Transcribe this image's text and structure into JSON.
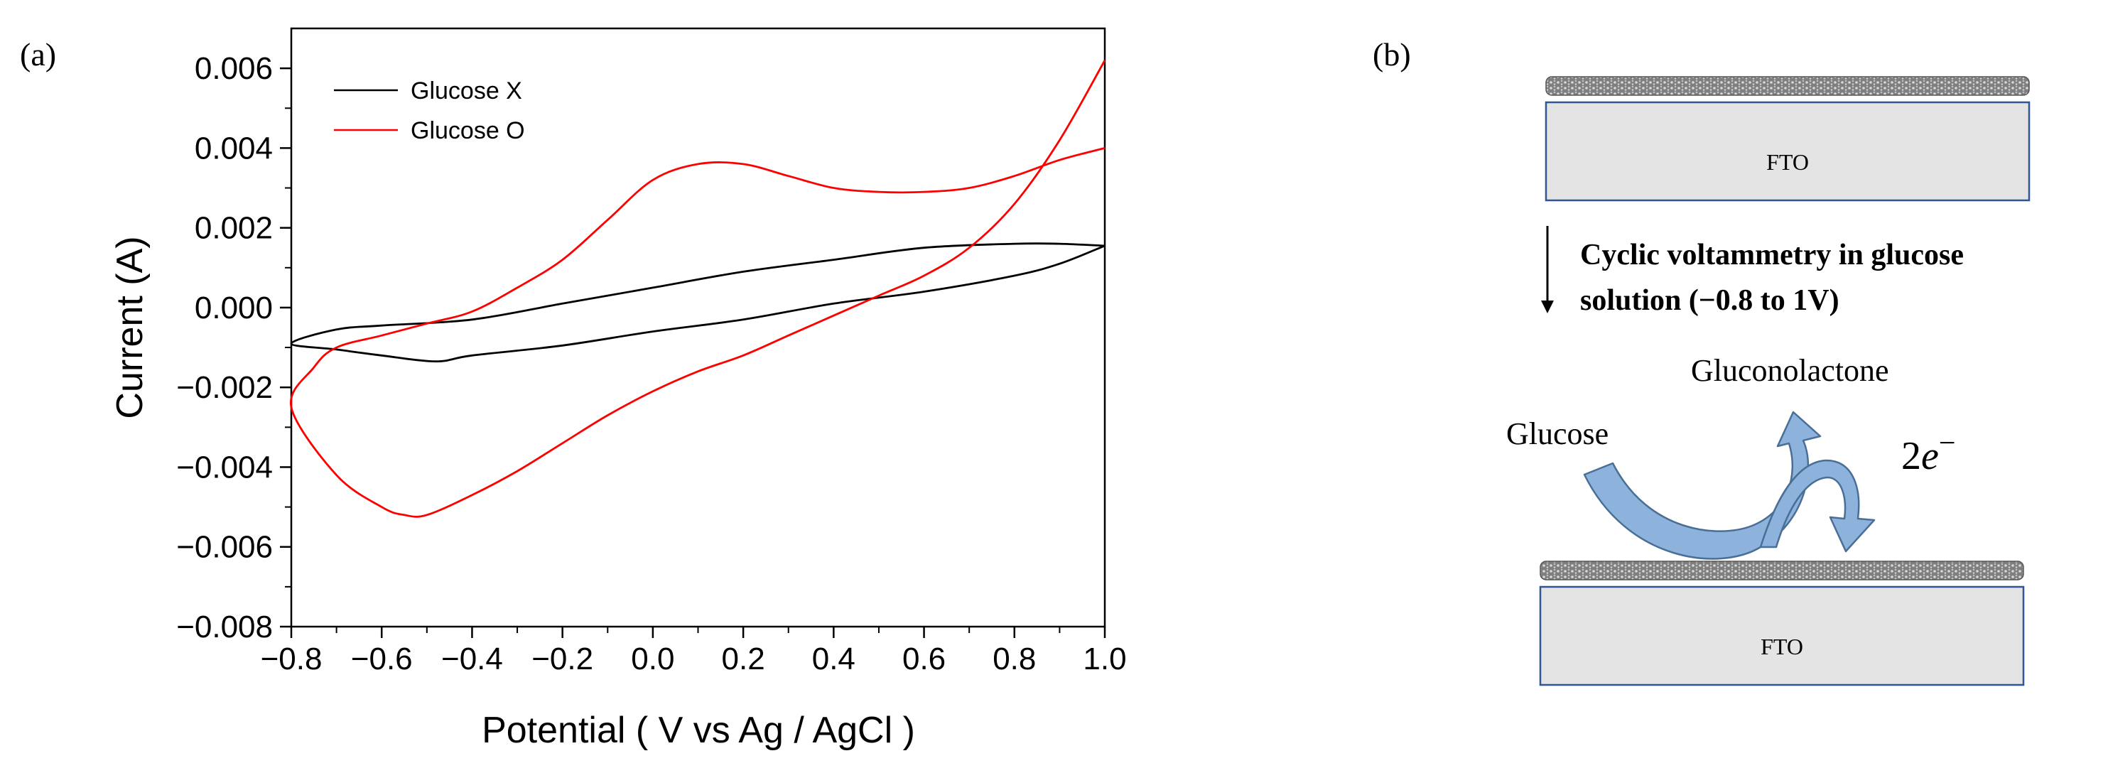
{
  "panel_a": {
    "label": "(a)",
    "chart_data": {
      "type": "line",
      "title": "",
      "xlabel": "Potential ( V vs Ag / AgCl )",
      "ylabel": "Current (A)",
      "xlim": [
        -0.8,
        1.0
      ],
      "ylim": [
        -0.008,
        0.007
      ],
      "xticks": [
        -0.8,
        -0.6,
        -0.4,
        -0.2,
        0.0,
        0.2,
        0.4,
        0.6,
        0.8,
        1.0
      ],
      "xtick_labels": [
        "−0.8",
        "−0.6",
        "−0.4",
        "−0.2",
        "0.0",
        "0.2",
        "0.4",
        "0.6",
        "0.8",
        "1.0"
      ],
      "yticks": [
        -0.008,
        -0.006,
        -0.004,
        -0.002,
        0.0,
        0.002,
        0.004,
        0.006
      ],
      "ytick_labels": [
        "−0.008",
        "−0.006",
        "−0.004",
        "−0.002",
        "0.000",
        "0.002",
        "0.004",
        "0.006"
      ],
      "grid": false,
      "legend_position": "top-left",
      "series": [
        {
          "name": "Glucose X",
          "color": "#000000",
          "x": [
            1.0,
            0.9,
            0.8,
            0.6,
            0.4,
            0.2,
            0.0,
            -0.2,
            -0.4,
            -0.48,
            -0.6,
            -0.7,
            -0.8,
            -0.7,
            -0.6,
            -0.4,
            -0.2,
            0.0,
            0.2,
            0.4,
            0.6,
            0.8,
            0.9,
            1.0
          ],
          "y": [
            0.00155,
            0.0011,
            0.0008,
            0.0004,
            0.0001,
            -0.0003,
            -0.0006,
            -0.00095,
            -0.0012,
            -0.00135,
            -0.0012,
            -0.00105,
            -0.0009,
            -0.00055,
            -0.00045,
            -0.0003,
            0.0001,
            0.0005,
            0.0009,
            0.0012,
            0.0015,
            0.0016,
            0.0016,
            0.00155
          ]
        },
        {
          "name": "Glucose O",
          "color": "#ff0000",
          "x": [
            1.0,
            0.9,
            0.8,
            0.7,
            0.6,
            0.5,
            0.4,
            0.3,
            0.2,
            0.1,
            0.0,
            -0.1,
            -0.2,
            -0.3,
            -0.4,
            -0.5,
            -0.55,
            -0.6,
            -0.7,
            -0.8,
            -0.75,
            -0.7,
            -0.6,
            -0.5,
            -0.4,
            -0.3,
            -0.2,
            -0.1,
            0.0,
            0.1,
            0.2,
            0.3,
            0.4,
            0.5,
            0.6,
            0.7,
            0.8,
            0.9,
            1.0
          ],
          "y": [
            0.0062,
            0.0042,
            0.0026,
            0.0015,
            0.0008,
            0.0003,
            -0.0002,
            -0.0007,
            -0.0012,
            -0.0016,
            -0.0021,
            -0.0027,
            -0.0034,
            -0.0041,
            -0.0047,
            -0.0052,
            -0.0052,
            -0.005,
            -0.0042,
            -0.0025,
            -0.0015,
            -0.001,
            -0.0007,
            -0.0004,
            -0.0001,
            0.0005,
            0.0012,
            0.0022,
            0.0032,
            0.0036,
            0.0036,
            0.0033,
            0.003,
            0.0029,
            0.0029,
            0.003,
            0.0033,
            0.0037,
            0.004
          ]
        }
      ]
    }
  },
  "panel_b": {
    "label": "(b)",
    "electrode_label_top": "FTO",
    "electrode_label_bottom": "FTO",
    "process_line1": "Cyclic voltammetry in glucose",
    "process_line2": "solution (−0.8 to 1V)",
    "reactant": "Glucose",
    "product": "Gluconolactone",
    "electrons_coef": "2",
    "electrons_symbol": "e",
    "electrons_sup": "−",
    "colors": {
      "arrow_fill": "#8db3dd",
      "arrow_stroke": "#4a6f96",
      "fto_fill": "#e4e4e4",
      "fto_stroke": "#2f5597",
      "film": "#8c8c8c"
    }
  }
}
